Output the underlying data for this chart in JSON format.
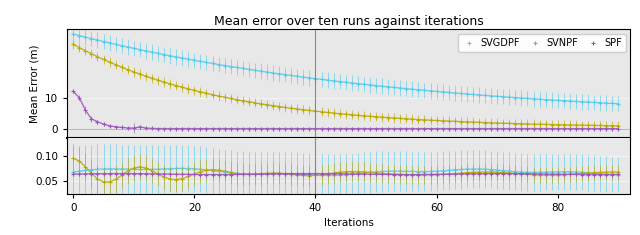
{
  "title": "Mean error over ten runs against iterations",
  "xlabel": "Iterations",
  "ylabel": "Mean Error (m)",
  "xlim": [
    -1,
    92
  ],
  "n_iterations": 91,
  "upper_ylim": [
    -3,
    32
  ],
  "lower_ylim": [
    0.025,
    0.135
  ],
  "upper_yticks": [
    0,
    10
  ],
  "lower_yticks": [
    0.05,
    0.1
  ],
  "legend_labels": [
    "SVGDPF",
    "SVNPF",
    "SPF"
  ],
  "colors": {
    "SVGDPF": "#55ccee",
    "SVNPF": "#bbaa00",
    "SPF": "#9955bb"
  },
  "vline_x": 40,
  "background_color": "#e8e8e8"
}
